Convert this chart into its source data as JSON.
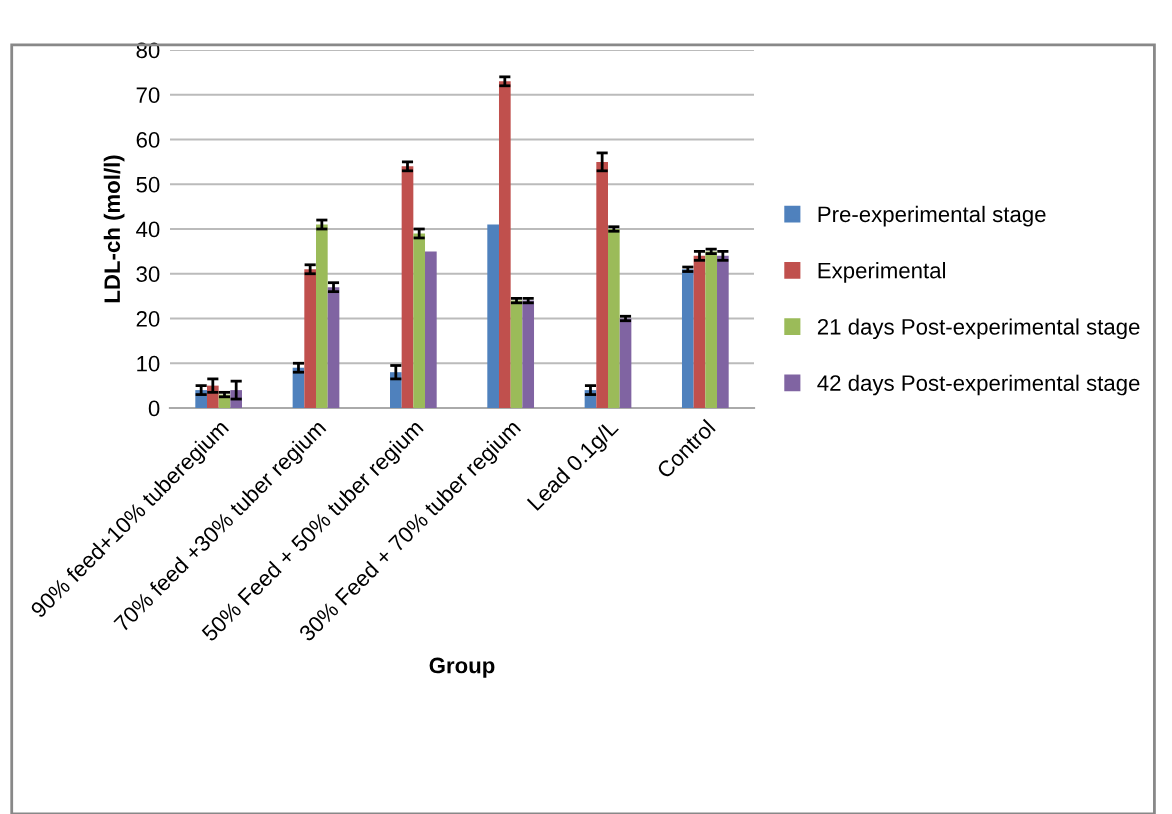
{
  "chart_data": {
    "type": "bar",
    "xlabel": "Group",
    "ylabel": "LDL-ch (mol/l)",
    "categories": [
      "90% feed+10% tuberegium",
      "70% feed +30% tuber regium",
      "50% Feed + 50% tuber regium",
      "30% Feed + 70% tuber regium",
      "Lead 0.1g/L",
      "Control"
    ],
    "series": [
      {
        "name": "Pre-experimental stage",
        "color": "#4f81bd",
        "values": [
          4,
          9,
          8,
          41,
          4,
          31
        ],
        "errors": [
          1,
          1,
          1.5,
          null,
          1,
          0.5
        ]
      },
      {
        "name": "Experimental",
        "color": "#c0504d",
        "values": [
          5,
          31,
          54,
          73,
          55,
          34
        ],
        "errors": [
          1.5,
          1,
          1,
          1,
          2,
          1
        ]
      },
      {
        "name": "21 days Post-experimental stage",
        "color": "#9bbb59",
        "values": [
          3,
          41,
          39,
          24,
          40,
          35
        ],
        "errors": [
          0.5,
          1,
          1,
          0.5,
          0.5,
          0.5
        ]
      },
      {
        "name": "42 days Post-experimental stage",
        "color": "#8064a2",
        "values": [
          4,
          27,
          35,
          24,
          20,
          34
        ],
        "errors": [
          2,
          1,
          null,
          0.5,
          0.5,
          1
        ]
      }
    ],
    "ylim": [
      0,
      80
    ],
    "yticks": [
      0,
      10,
      20,
      30,
      40,
      50,
      60,
      70,
      80
    ],
    "grid": "y",
    "legend": "right"
  }
}
